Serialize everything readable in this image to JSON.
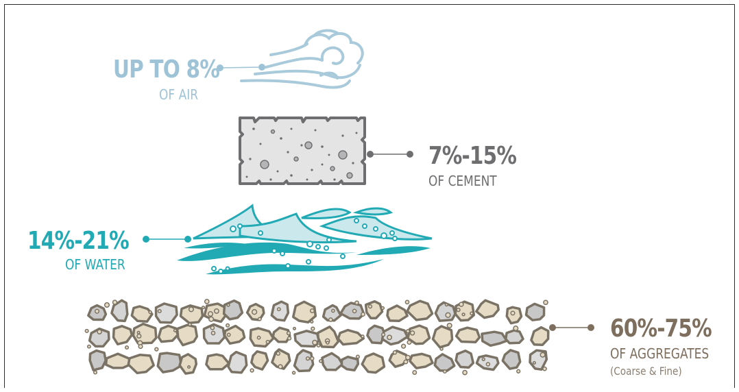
{
  "components": {
    "air": {
      "percent": "UP TO 8%",
      "label": "OF AIR",
      "color": "#9ec3d6"
    },
    "cement": {
      "percent": "7%-15%",
      "label": "OF CEMENT",
      "color": "#6e6e70"
    },
    "water": {
      "percent": "14%-21%",
      "label": "OF WATER",
      "color": "#21a9b4"
    },
    "aggregates": {
      "percent": "60%-75%",
      "label": "OF AGGREGATES",
      "note": "(Coarse & Fine)",
      "color": "#7d6e5e"
    }
  },
  "icons": [
    "air-cloud-icon",
    "cement-block-icon",
    "water-waves-icon",
    "aggregates-stones-icon"
  ]
}
